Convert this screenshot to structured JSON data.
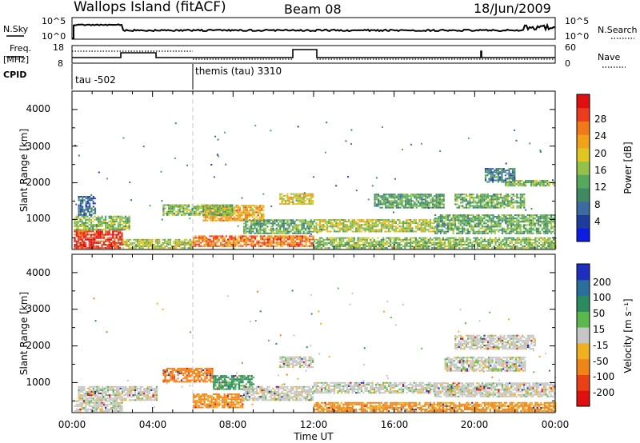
{
  "header": {
    "station": "Wallops Island (fitACF)",
    "beam": "Beam 08",
    "date": "18/Jun/2009"
  },
  "top_panels": {
    "nsky_label": "N.Sky",
    "nsearch_label": "N.Search",
    "nsky_ticks": [
      "10^5",
      "10^0"
    ],
    "nsearch_ticks": [
      "10^5",
      "10^0"
    ],
    "freq_label_line1": "Freq.",
    "freq_label_line2": "[MHz]",
    "freq_ticks": [
      "18",
      "8"
    ],
    "nave_label": "Nave",
    "nave_ticks": [
      "60",
      "0"
    ],
    "cpid_label": "CPID",
    "cpid_segments": [
      {
        "label": "tau -502",
        "start_hour": 0
      },
      {
        "label": "themis (tau) 3310",
        "start_hour": 6
      }
    ]
  },
  "time_axis": {
    "label": "Time UT",
    "ticks": [
      "00:00",
      "04:00",
      "08:00",
      "12:00",
      "16:00",
      "20:00",
      "00:00"
    ]
  },
  "colorbar_power": {
    "label": "Power [dB]",
    "ticks": [
      "4",
      "8",
      "12",
      "16",
      "20",
      "24",
      "28"
    ],
    "colors": [
      "#0a1de0",
      "#1f3c9c",
      "#3d6aa0",
      "#3f8a63",
      "#56a95c",
      "#93c24b",
      "#e0c623",
      "#f0a21c",
      "#f07a1a",
      "#ec3c1c",
      "#e01010"
    ]
  },
  "colorbar_velocity": {
    "label": "Velocity [m s⁻¹]",
    "ticks": [
      "200",
      "100",
      "50",
      "15",
      "-15",
      "-50",
      "-100",
      "-200"
    ],
    "colors": [
      "#1e2fbf",
      "#2a6f9c",
      "#2c8a5f",
      "#5ab84c",
      "#c6c6c6",
      "#f0b020",
      "#f08418",
      "#ea4018",
      "#e01010"
    ]
  },
  "chart_data": [
    {
      "type": "heatmap",
      "panel": "power",
      "ylabel": "Slant Range [km]",
      "xlabel": "Time UT",
      "xlim_hours": [
        0,
        24
      ],
      "ylim_km": [
        180,
        4500
      ],
      "yticks": [
        "1000",
        "2000",
        "3000",
        "4000"
      ],
      "zlabel": "Power [dB]",
      "zlim": [
        0,
        30
      ],
      "echo_regions": [
        {
          "t0": 0.1,
          "t1": 2.5,
          "r0": 200,
          "r1": 700,
          "power": 28
        },
        {
          "t0": 0.1,
          "t1": 2.8,
          "r0": 700,
          "r1": 1100,
          "power": 14
        },
        {
          "t0": 0.3,
          "t1": 1.2,
          "r0": 1100,
          "r1": 1600,
          "power": 6
        },
        {
          "t0": 2.5,
          "t1": 6.0,
          "r0": 200,
          "r1": 450,
          "power": 16
        },
        {
          "t0": 6.0,
          "t1": 12.0,
          "r0": 250,
          "r1": 550,
          "power": 24
        },
        {
          "t0": 6.5,
          "t1": 9.5,
          "r0": 950,
          "r1": 1400,
          "power": 21
        },
        {
          "t0": 4.5,
          "t1": 8.0,
          "r0": 1100,
          "r1": 1400,
          "power": 14
        },
        {
          "t0": 8.5,
          "t1": 12.0,
          "r0": 600,
          "r1": 1000,
          "power": 12
        },
        {
          "t0": 10.3,
          "t1": 12.0,
          "r0": 1400,
          "r1": 1700,
          "power": 18
        },
        {
          "t0": 12.0,
          "t1": 18.0,
          "r0": 650,
          "r1": 1000,
          "power": 16
        },
        {
          "t0": 12.0,
          "t1": 24.0,
          "r0": 200,
          "r1": 500,
          "power": 14
        },
        {
          "t0": 15.0,
          "t1": 18.5,
          "r0": 1300,
          "r1": 1700,
          "power": 11
        },
        {
          "t0": 19.0,
          "t1": 22.5,
          "r0": 1300,
          "r1": 1700,
          "power": 12
        },
        {
          "t0": 18.0,
          "t1": 24.0,
          "r0": 600,
          "r1": 1100,
          "power": 12
        },
        {
          "t0": 21.5,
          "t1": 24.0,
          "r0": 1900,
          "r1": 2050,
          "power": 14
        },
        {
          "t0": 20.5,
          "t1": 22.0,
          "r0": 2000,
          "r1": 2400,
          "power": 8
        }
      ]
    },
    {
      "type": "heatmap",
      "panel": "velocity",
      "ylabel": "Slant Range [km]",
      "xlabel": "Time UT",
      "xlim_hours": [
        0,
        24
      ],
      "ylim_km": [
        180,
        4500
      ],
      "yticks": [
        "1000",
        "2000",
        "3000",
        "4000"
      ],
      "zlabel": "Velocity [m s⁻¹]",
      "zlim": [
        -200,
        200
      ],
      "echo_regions": [
        {
          "t0": 0.3,
          "t1": 4.2,
          "r0": 500,
          "r1": 900,
          "velocity": 0
        },
        {
          "t0": 0.1,
          "t1": 2.5,
          "r0": 200,
          "r1": 500,
          "velocity": 0
        },
        {
          "t0": 4.5,
          "t1": 7.0,
          "r0": 1000,
          "r1": 1400,
          "velocity": -60
        },
        {
          "t0": 7.0,
          "t1": 9.0,
          "r0": 800,
          "r1": 1200,
          "velocity": 40
        },
        {
          "t0": 6.0,
          "t1": 8.5,
          "r0": 300,
          "r1": 700,
          "velocity": -40
        },
        {
          "t0": 8.5,
          "t1": 12.0,
          "r0": 500,
          "r1": 900,
          "velocity": 0
        },
        {
          "t0": 10.3,
          "t1": 12.0,
          "r0": 1400,
          "r1": 1700,
          "velocity": 0
        },
        {
          "t0": 12.0,
          "t1": 18.0,
          "r0": 700,
          "r1": 1000,
          "velocity": 0
        },
        {
          "t0": 12.0,
          "t1": 24.0,
          "r0": 200,
          "r1": 450,
          "velocity": -40
        },
        {
          "t0": 18.5,
          "t1": 22.5,
          "r0": 1300,
          "r1": 1700,
          "velocity": 0
        },
        {
          "t0": 19.0,
          "t1": 23.0,
          "r0": 1900,
          "r1": 2300,
          "velocity": 0
        },
        {
          "t0": 18.0,
          "t1": 24.0,
          "r0": 600,
          "r1": 1000,
          "velocity": 0
        }
      ]
    }
  ]
}
